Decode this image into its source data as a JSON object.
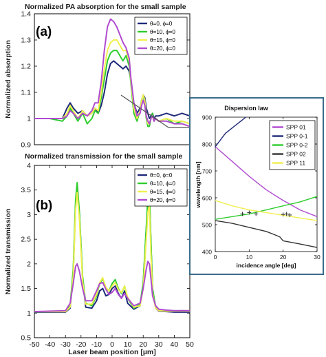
{
  "chart_data": [
    {
      "type": "line",
      "title": "Normalized PA absorption for the small sample",
      "panel_label": "(a)",
      "xlabel": "",
      "ylabel": "Normalized absorption",
      "xlim": [
        -50,
        50
      ],
      "ylim": [
        0.9,
        1.4
      ],
      "yticks": [
        "0.9",
        "1",
        "1.1",
        "1.2",
        "1.3",
        "1.4"
      ],
      "grid": false,
      "legend": "top-right",
      "series": [
        {
          "name": "θ=0, ϕ=0",
          "color": "#1f2a7a",
          "x": [
            -50,
            -40,
            -32,
            -29,
            -27,
            -25,
            -22,
            -19,
            -16,
            -13,
            -11,
            -9,
            -7,
            -5,
            -3,
            -1,
            1,
            3,
            5,
            7,
            9,
            11,
            12,
            14,
            16,
            18,
            19,
            20,
            21,
            22,
            23,
            24,
            25,
            26,
            27,
            28,
            30,
            35,
            40,
            45,
            50
          ],
          "y": [
            1.0,
            1.0,
            1.0,
            1.04,
            1.06,
            1.04,
            1.02,
            1.03,
            1.01,
            1.02,
            1.04,
            1.02,
            1.05,
            1.1,
            1.17,
            1.21,
            1.22,
            1.21,
            1.2,
            1.19,
            1.2,
            1.18,
            1.15,
            1.06,
            1.02,
            1.04,
            1.07,
            1.09,
            1.08,
            1.04,
            1.02,
            1.0,
            1.01,
            1.02,
            1.0,
            1.01,
            1.01,
            1.02,
            1.01,
            1.02,
            1.01
          ]
        },
        {
          "name": "θ=10, ϕ=0",
          "color": "#2ecc2e",
          "x": [
            -50,
            -40,
            -32,
            -29,
            -27,
            -25,
            -22,
            -19,
            -16,
            -13,
            -11,
            -9,
            -7,
            -5,
            -3,
            -1,
            1,
            3,
            5,
            7,
            9,
            11,
            12,
            14,
            16,
            18,
            19,
            20,
            21,
            22,
            23,
            24,
            25,
            26,
            27,
            28,
            30,
            35,
            40,
            45,
            50
          ],
          "y": [
            1.0,
            1.0,
            0.99,
            1.01,
            1.04,
            1.02,
            0.99,
            1.02,
            0.98,
            1.0,
            1.03,
            1.02,
            1.08,
            1.15,
            1.22,
            1.25,
            1.26,
            1.26,
            1.24,
            1.22,
            1.24,
            1.2,
            1.14,
            1.02,
            0.99,
            1.03,
            1.07,
            1.09,
            1.06,
            1.0,
            0.97,
            0.97,
            1.0,
            1.02,
            0.99,
            1.0,
            0.99,
            1.0,
            0.98,
            0.99,
            0.98
          ]
        },
        {
          "name": "θ=15, ϕ=0",
          "color": "#f0f050",
          "x": [
            -50,
            -40,
            -32,
            -29,
            -27,
            -25,
            -22,
            -19,
            -16,
            -13,
            -11,
            -9,
            -7,
            -5,
            -3,
            -1,
            1,
            3,
            5,
            7,
            9,
            11,
            12,
            14,
            16,
            18,
            19,
            20,
            21,
            22,
            23,
            24,
            25,
            26,
            27,
            28,
            30,
            35,
            40,
            45,
            50
          ],
          "y": [
            1.0,
            1.0,
            1.0,
            1.02,
            1.05,
            1.03,
            1.0,
            1.03,
            1.01,
            1.02,
            1.04,
            1.03,
            1.1,
            1.19,
            1.26,
            1.29,
            1.3,
            1.3,
            1.28,
            1.26,
            1.26,
            1.22,
            1.15,
            1.04,
            1.0,
            1.03,
            1.07,
            1.09,
            1.07,
            1.01,
            0.98,
            0.98,
            1.0,
            1.01,
            0.99,
            1.0,
            0.99,
            1.0,
            0.99,
            0.99,
            0.98
          ]
        },
        {
          "name": "θ=20, ϕ=0",
          "color": "#b04ad0",
          "x": [
            -50,
            -40,
            -32,
            -29,
            -27,
            -25,
            -22,
            -19,
            -16,
            -13,
            -11,
            -9,
            -7,
            -5,
            -3,
            -1,
            1,
            3,
            5,
            7,
            9,
            11,
            12,
            14,
            16,
            18,
            19,
            20,
            21,
            22,
            23,
            24,
            25,
            26,
            27,
            28,
            30,
            35,
            40,
            45,
            50
          ],
          "y": [
            1.0,
            1.0,
            1.0,
            1.01,
            1.03,
            1.02,
            1.0,
            1.02,
            1.01,
            1.03,
            1.06,
            1.06,
            1.14,
            1.26,
            1.35,
            1.38,
            1.37,
            1.35,
            1.32,
            1.29,
            1.27,
            1.23,
            1.16,
            1.06,
            1.01,
            1.02,
            1.05,
            1.07,
            1.05,
            1.01,
            0.99,
            0.98,
            1.0,
            1.01,
            0.99,
            1.0,
            0.99,
            0.99,
            0.98,
            0.98,
            0.97
          ]
        }
      ]
    },
    {
      "type": "line",
      "title": "Normalized transmission for the small sample",
      "panel_label": "(b)",
      "xlabel": "Laser beam position [µm]",
      "ylabel": "Normalized transmission",
      "xlim": [
        -50,
        50
      ],
      "ylim": [
        0.5,
        4
      ],
      "xticks": [
        "-50",
        "-40",
        "-30",
        "-20",
        "-10",
        "0",
        "10",
        "20",
        "30",
        "40",
        "50"
      ],
      "yticks": [
        "0.5",
        "1",
        "1.5",
        "2",
        "2.5",
        "3",
        "3.5",
        "4"
      ],
      "grid": false,
      "legend": "top-right",
      "series": [
        {
          "name": "θ=0, ϕ=0",
          "color": "#1f2a7a",
          "x": [
            -50,
            -30,
            -27,
            -25,
            -23.5,
            -22.5,
            -21,
            -19,
            -17,
            -13,
            -10,
            -8,
            -6,
            -4,
            -2,
            0,
            2,
            4,
            6,
            8,
            10,
            14,
            18,
            20,
            22,
            23,
            24,
            25,
            26,
            28,
            30,
            35,
            40,
            45,
            50
          ],
          "y": [
            1.02,
            1.02,
            1.1,
            1.8,
            3.2,
            3.6,
            3.0,
            1.7,
            1.12,
            1.1,
            1.25,
            1.45,
            1.5,
            1.35,
            1.38,
            1.5,
            1.55,
            1.4,
            1.3,
            1.45,
            1.2,
            1.08,
            1.15,
            1.6,
            2.7,
            3.3,
            3.45,
            2.4,
            1.5,
            1.1,
            1.04,
            1.03,
            1.02,
            1.02,
            1.02
          ]
        },
        {
          "name": "θ=10, ϕ=0",
          "color": "#2ecc2e",
          "x": [
            -50,
            -30,
            -27,
            -25,
            -23.5,
            -22.5,
            -21,
            -19,
            -17,
            -13,
            -10,
            -8,
            -6,
            -4,
            -2,
            0,
            2,
            4,
            6,
            8,
            10,
            14,
            18,
            20,
            22,
            23,
            24,
            25,
            26,
            28,
            30,
            35,
            40,
            45,
            50
          ],
          "y": [
            1.03,
            1.03,
            1.15,
            1.9,
            3.3,
            3.65,
            3.05,
            1.75,
            1.2,
            1.15,
            1.35,
            1.6,
            1.7,
            1.5,
            1.45,
            1.6,
            1.68,
            1.5,
            1.4,
            1.55,
            1.3,
            1.1,
            1.18,
            1.62,
            2.75,
            3.35,
            3.5,
            2.45,
            1.5,
            1.12,
            1.06,
            1.05,
            1.04,
            1.05,
            1.04
          ]
        },
        {
          "name": "θ=15, ϕ=0",
          "color": "#f0f050",
          "x": [
            -50,
            -30,
            -27,
            -25,
            -23.5,
            -22.5,
            -21,
            -19,
            -17,
            -13,
            -10,
            -8,
            -6,
            -4,
            -2,
            0,
            2,
            4,
            6,
            8,
            10,
            14,
            18,
            20,
            22,
            23,
            24,
            25,
            26,
            28,
            30,
            35,
            40,
            45,
            50
          ],
          "y": [
            1.03,
            1.03,
            1.12,
            1.75,
            3.1,
            3.45,
            2.9,
            1.65,
            1.18,
            1.18,
            1.38,
            1.62,
            1.72,
            1.52,
            1.45,
            1.55,
            1.62,
            1.48,
            1.42,
            1.55,
            1.32,
            1.12,
            1.15,
            1.5,
            2.5,
            3.05,
            3.2,
            2.2,
            1.4,
            1.1,
            1.05,
            1.04,
            1.04,
            1.04,
            1.04
          ]
        },
        {
          "name": "θ=20, ϕ=0",
          "color": "#b04ad0",
          "x": [
            -50,
            -30,
            -27,
            -25,
            -23.5,
            -22.5,
            -21,
            -19,
            -17,
            -13,
            -10,
            -8,
            -6,
            -4,
            -2,
            0,
            2,
            4,
            6,
            8,
            10,
            14,
            18,
            20,
            22,
            23,
            24,
            25,
            26,
            28,
            30,
            35,
            40,
            45,
            50
          ],
          "y": [
            1.03,
            1.05,
            1.2,
            1.6,
            1.95,
            2.0,
            1.85,
            1.5,
            1.25,
            1.25,
            1.45,
            1.6,
            1.62,
            1.48,
            1.38,
            1.42,
            1.5,
            1.38,
            1.3,
            1.4,
            1.3,
            1.15,
            1.2,
            1.5,
            1.9,
            2.05,
            2.0,
            1.7,
            1.35,
            1.15,
            1.08,
            1.06,
            1.05,
            1.05,
            1.05
          ]
        }
      ]
    },
    {
      "type": "line",
      "title": "Dispersion law",
      "xlabel": "incidence angle [deg]",
      "ylabel": "wavelength [nm]",
      "xlim": [
        0,
        30
      ],
      "ylim": [
        400,
        900
      ],
      "xticks": [
        "0",
        "10",
        "20",
        "30"
      ],
      "yticks": [
        "400",
        "500",
        "600",
        "700",
        "800",
        "900"
      ],
      "grid": false,
      "legend": "top-right",
      "series": [
        {
          "name": "SPP 01",
          "color": "#b04ad0",
          "x": [
            0,
            5,
            10,
            15,
            20,
            25,
            30
          ],
          "y": [
            790,
            735,
            680,
            630,
            590,
            555,
            530
          ]
        },
        {
          "name": "SPP 0-1",
          "color": "#1f2a7a",
          "x": [
            0,
            3,
            6,
            8,
            9
          ],
          "y": [
            790,
            840,
            870,
            890,
            900
          ]
        },
        {
          "name": "SPP 0-2",
          "color": "#2ecc2e",
          "x": [
            0,
            5,
            10,
            15,
            20,
            25,
            30
          ],
          "y": [
            520,
            530,
            540,
            555,
            570,
            585,
            605
          ]
        },
        {
          "name": "SPP 02",
          "color": "#333333",
          "x": [
            0,
            5,
            10,
            15,
            17,
            19,
            20,
            25,
            30
          ],
          "y": [
            515,
            505,
            490,
            475,
            465,
            455,
            440,
            428,
            415
          ]
        },
        {
          "name": "SPP 11",
          "color": "#f0f050",
          "x": [
            0,
            5,
            10,
            15,
            20,
            25,
            30
          ],
          "y": [
            590,
            570,
            555,
            545,
            535,
            525,
            515
          ]
        }
      ],
      "points": {
        "x": [
          8,
          10,
          12,
          20,
          21,
          22
        ],
        "y": [
          540,
          545,
          540,
          538,
          540,
          536
        ]
      }
    }
  ]
}
